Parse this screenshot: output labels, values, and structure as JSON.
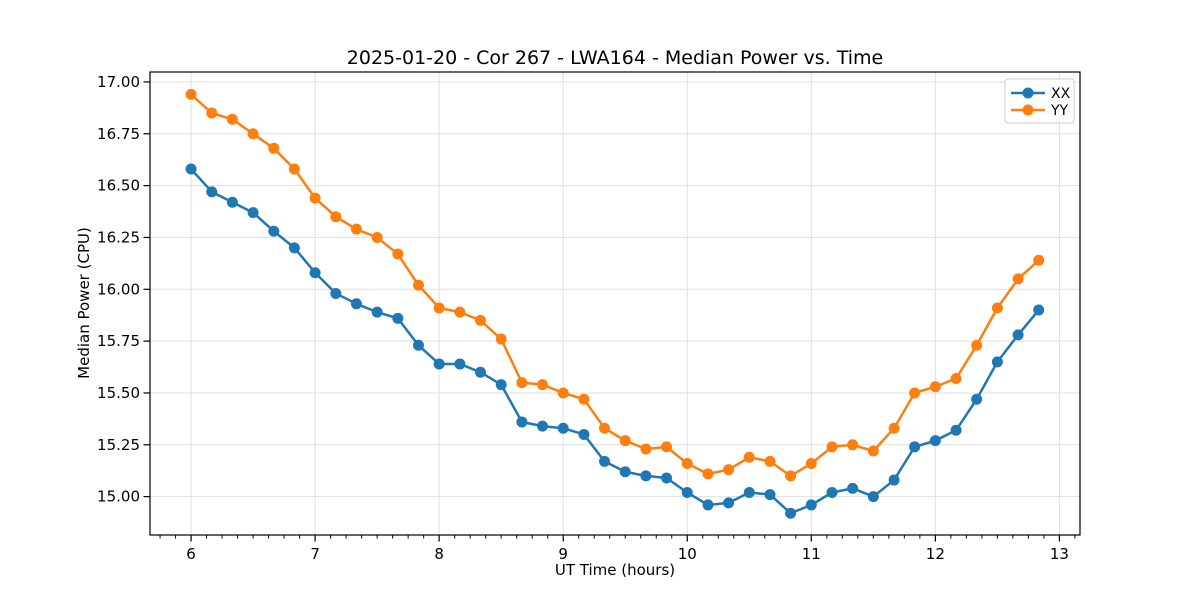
{
  "figure": {
    "title": "2025-01-20 - Cor 267 - LWA164 - Median Power vs. Time",
    "xlabel": "UT Time (hours)",
    "ylabel": "Median Power (CPU)"
  },
  "legend": {
    "position": "upper right",
    "items": [
      {
        "label": "XX",
        "color": "#1f77b4"
      },
      {
        "label": "YY",
        "color": "#ff7f0e"
      }
    ]
  },
  "chart_data": {
    "type": "line",
    "title": "2025-01-20 - Cor 267 - LWA164 - Median Power vs. Time",
    "xlabel": "UT Time (hours)",
    "ylabel": "Median Power (CPU)",
    "xlim": [
      5.669,
      13.166
    ],
    "ylim": [
      14.815,
      17.048
    ],
    "grid": true,
    "grid_color": "#e0e0e0",
    "x_ticks": [
      6,
      7,
      8,
      9,
      10,
      11,
      12,
      13
    ],
    "x_tick_labels": [
      "6",
      "7",
      "8",
      "9",
      "10",
      "11",
      "12",
      "13"
    ],
    "x_minor_step": 0.125,
    "y_ticks": [
      15.0,
      15.25,
      15.5,
      15.75,
      16.0,
      16.25,
      16.5,
      16.75,
      17.0
    ],
    "y_tick_labels": [
      "15.00",
      "15.25",
      "15.50",
      "15.75",
      "16.00",
      "16.25",
      "16.50",
      "16.75",
      "17.00"
    ],
    "x": [
      6.0,
      6.167,
      6.333,
      6.5,
      6.667,
      6.833,
      7.0,
      7.167,
      7.333,
      7.5,
      7.667,
      7.833,
      8.0,
      8.167,
      8.333,
      8.5,
      8.667,
      8.833,
      9.0,
      9.167,
      9.333,
      9.5,
      9.667,
      9.833,
      10.0,
      10.167,
      10.333,
      10.5,
      10.667,
      10.833,
      11.0,
      11.167,
      11.333,
      11.5,
      11.667,
      11.833,
      12.0,
      12.167,
      12.333,
      12.5,
      12.667,
      12.833
    ],
    "series": [
      {
        "name": "XX",
        "color": "#1f77b4",
        "marker": "circle",
        "values": [
          16.58,
          16.47,
          16.42,
          16.37,
          16.28,
          16.2,
          16.08,
          15.98,
          15.93,
          15.89,
          15.86,
          15.73,
          15.64,
          15.64,
          15.6,
          15.54,
          15.36,
          15.34,
          15.33,
          15.3,
          15.17,
          15.12,
          15.1,
          15.09,
          15.02,
          14.96,
          14.97,
          15.02,
          15.01,
          14.92,
          14.96,
          15.02,
          15.04,
          15.0,
          15.08,
          15.24,
          15.27,
          15.32,
          15.47,
          15.65,
          15.78,
          15.9
        ]
      },
      {
        "name": "YY",
        "color": "#ff7f0e",
        "marker": "circle",
        "values": [
          16.94,
          16.85,
          16.82,
          16.75,
          16.68,
          16.58,
          16.44,
          16.35,
          16.29,
          16.25,
          16.17,
          16.02,
          15.91,
          15.89,
          15.85,
          15.76,
          15.55,
          15.54,
          15.5,
          15.47,
          15.33,
          15.27,
          15.23,
          15.24,
          15.16,
          15.11,
          15.13,
          15.19,
          15.17,
          15.1,
          15.16,
          15.24,
          15.25,
          15.22,
          15.33,
          15.5,
          15.53,
          15.57,
          15.73,
          15.91,
          16.05,
          16.14
        ]
      }
    ]
  }
}
